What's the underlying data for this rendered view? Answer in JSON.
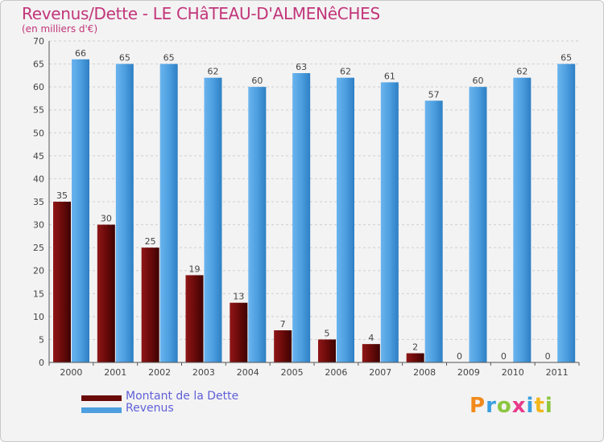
{
  "chart_data": {
    "type": "bar",
    "title": "Revenus/Dette - LE CHâTEAU-D'ALMENêCHES",
    "subtitle": "(en milliers d'€)",
    "categories": [
      "2000",
      "2001",
      "2002",
      "2003",
      "2004",
      "2005",
      "2006",
      "2007",
      "2008",
      "2009",
      "2010",
      "2011"
    ],
    "series": [
      {
        "name": "Montant de la Dette",
        "color": "#6b0a0a",
        "values": [
          35,
          30,
          25,
          19,
          13,
          7,
          5,
          4,
          2,
          0,
          0,
          0
        ]
      },
      {
        "name": "Revenus",
        "color": "#4d9fe0",
        "values": [
          66,
          65,
          65,
          62,
          60,
          63,
          62,
          61,
          57,
          60,
          62,
          65
        ]
      }
    ],
    "ylim": [
      0,
      70
    ],
    "yticks": [
      0,
      5,
      10,
      15,
      20,
      25,
      30,
      35,
      40,
      45,
      50,
      55,
      60,
      65,
      70
    ],
    "grid": true,
    "legend": "bottom-left"
  },
  "logo_text": "Proxiti"
}
